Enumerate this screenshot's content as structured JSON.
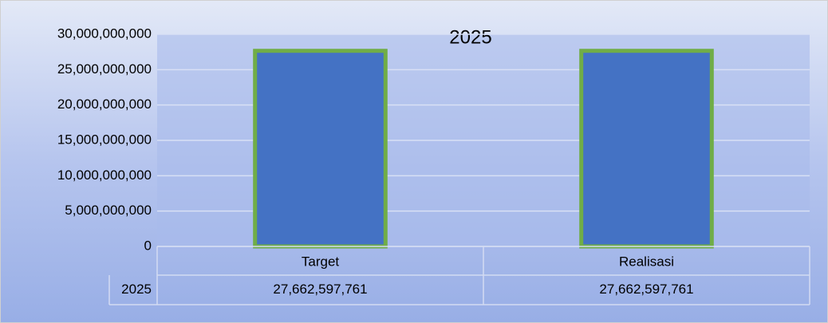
{
  "chart_data": {
    "type": "bar",
    "title": "2025",
    "categories": [
      "Target",
      "Realisasi"
    ],
    "series": [
      {
        "name": "2025",
        "color": "#4472c4",
        "edge_color": "#70ad47",
        "values": [
          27662597761,
          27662597761
        ],
        "value_labels": [
          "27,662,597,761",
          "27,662,597,761"
        ]
      }
    ],
    "ylim": [
      0,
      30000000000
    ],
    "yticks": [
      0,
      {
        "value": 5000000000,
        "label": "5,000,000,000"
      },
      {
        "value": 10000000000,
        "label": "10,000,000,000"
      },
      {
        "value": 15000000000,
        "label": "15,000,000,000"
      },
      {
        "value": 20000000000,
        "label": "20,000,000,000"
      },
      {
        "value": 25000000000,
        "label": "25,000,000,000"
      },
      {
        "value": 30000000000,
        "label": "30,000,000,000"
      }
    ],
    "grid": true,
    "data_table": true
  }
}
